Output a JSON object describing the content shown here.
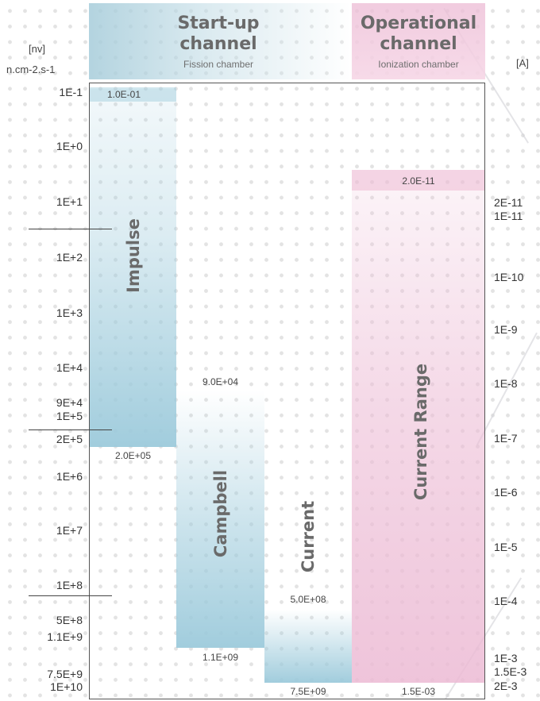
{
  "units": {
    "left_top": "[nv]",
    "left_bottom": "n.cm-2.s-1",
    "right": "[A]"
  },
  "startup": {
    "title_line1": "Start-up",
    "title_line2": "channel",
    "subtitle": "Fission chamber"
  },
  "operational": {
    "title_line1": "Operational",
    "title_line2": "channel",
    "subtitle": "Ionization chamber"
  },
  "left_axis": [
    "1E-1",
    "1E+0",
    "1E+1",
    "1E+2",
    "1E+3",
    "1E+4",
    "9E+4",
    "1E+5",
    "2E+5",
    "1E+6",
    "1E+7",
    "1E+8",
    "5E+8",
    "1.1E+9",
    "7.5E+9",
    "1E+10"
  ],
  "right_axis": [
    "2E-11",
    "1E-11",
    "1E-10",
    "1E-9",
    "1E-8",
    "1E-7",
    "1E-6",
    "1E-5",
    "1E-4",
    "1E-3",
    "1.5E-3",
    "2E-3"
  ],
  "ranges": {
    "impulse": {
      "label": "Impulse",
      "top_value": "1.0E-01",
      "bottom_value": "2.0E+05"
    },
    "campbell": {
      "label": "Campbell",
      "top_value": "9.0E+04",
      "bottom_value": "1.1E+09"
    },
    "current": {
      "label": "Current",
      "top_value": "5.0E+08",
      "bottom_value": "7.5E+09"
    },
    "current_range": {
      "label": "Current Range",
      "top_value": "2.0E-11",
      "bottom_value": "1.5E-03"
    }
  },
  "colors": {
    "startup_blue": "#9ccadb",
    "operational_pink": "#ecbad4"
  }
}
